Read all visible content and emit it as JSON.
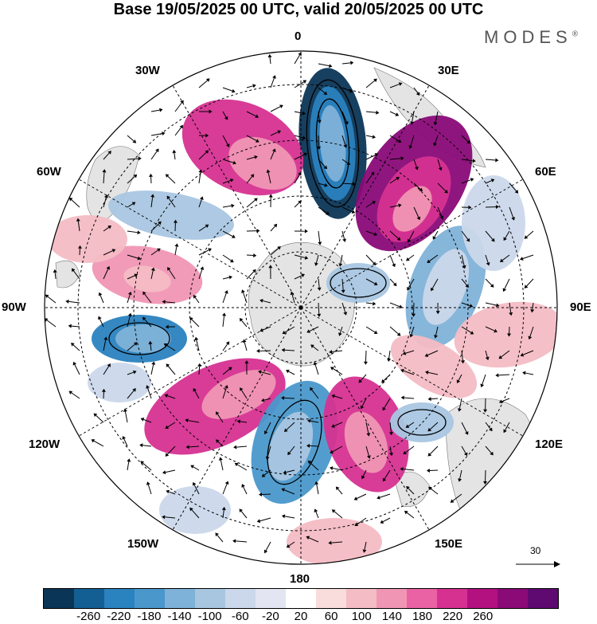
{
  "title": "Base 19/05/2025 00 UTC, valid 20/05/2025 00 UTC",
  "brand": "MODES",
  "brand_mark": "®",
  "map": {
    "projection": "south-polar-stereographic",
    "longitude_labels": {
      "top": "0",
      "bottom": "180",
      "left": "90W",
      "right": "90E",
      "upper_left": "30W",
      "upper_right": "30E",
      "left_upper": "60W",
      "right_upper": "60E",
      "left_lower": "120W",
      "right_lower": "120E",
      "lower_left": "150W",
      "lower_right": "150E"
    },
    "reference_vector": "30",
    "colors": {
      "negative": [
        "#0b3556",
        "#135f93",
        "#2a82bf",
        "#4a98cb",
        "#7fb2d8",
        "#a9c6e1",
        "#cbd8eb",
        "#e3e6f2"
      ],
      "positive": [
        "#f9dcdc",
        "#f4bcc4",
        "#f096b4",
        "#ea61a4",
        "#d63191",
        "#b3117f",
        "#8a0a78",
        "#5e0a70"
      ],
      "land": "#e4e4e4"
    }
  },
  "colorbar": {
    "colors": [
      "#0b3556",
      "#135f93",
      "#2a82bf",
      "#4a98cb",
      "#7fb2d8",
      "#a9c6e1",
      "#cbd8eb",
      "#e3e6f2",
      "#ffffff",
      "#f9dcdc",
      "#f4bcc4",
      "#f096b4",
      "#ea61a4",
      "#d63191",
      "#b3117f",
      "#8a0a78",
      "#5e0a70"
    ],
    "ticks": [
      "-260",
      "-220",
      "-180",
      "-140",
      "-100",
      "-60",
      "-20",
      "20",
      "60",
      "100",
      "140",
      "180",
      "220",
      "260"
    ]
  }
}
